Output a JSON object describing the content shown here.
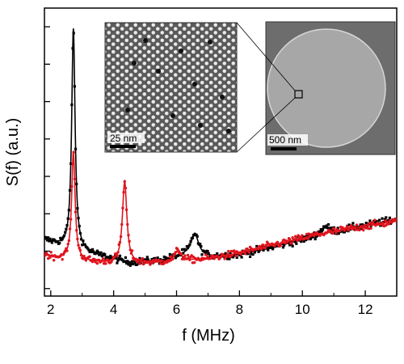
{
  "chart_data": {
    "type": "line",
    "xlabel": "f (MHz)",
    "ylabel": "S(f) (a.u.)",
    "xlim": [
      1.8,
      13.0
    ],
    "ylim": [
      -1.2,
      6.5
    ],
    "x_tick_labels": [
      "2",
      "4",
      "6",
      "8",
      "10",
      "12"
    ],
    "x_ticks": [
      2,
      4,
      6,
      8,
      10,
      12
    ],
    "y_ticks": [
      -1,
      0,
      1,
      2,
      3,
      4,
      5,
      6
    ],
    "y_tick_labels_shown": false,
    "grid": false,
    "legend": "none",
    "series": [
      {
        "color": "#000000",
        "marker": "square",
        "baseline": [
          [
            1.8,
            0.3
          ],
          [
            2.3,
            0.15
          ],
          [
            3.4,
            -0.1
          ],
          [
            4.5,
            -0.3
          ],
          [
            5.5,
            -0.25
          ],
          [
            6.3,
            -0.1
          ],
          [
            7.0,
            -0.15
          ],
          [
            8.0,
            -0.1
          ],
          [
            9.5,
            0.2
          ],
          [
            10.5,
            0.4
          ],
          [
            11.5,
            0.6
          ],
          [
            13.0,
            0.85
          ]
        ],
        "peaks": [
          {
            "f": 2.72,
            "height": 5.9,
            "width": 0.065
          },
          {
            "f": 6.58,
            "height": 0.6,
            "width": 0.14
          },
          {
            "f": 10.72,
            "height": 0.22,
            "width": 0.16
          }
        ]
      },
      {
        "color": "#e0141e",
        "marker": "circle",
        "baseline": [
          [
            1.8,
            -0.1
          ],
          [
            2.3,
            -0.2
          ],
          [
            3.4,
            -0.3
          ],
          [
            4.5,
            -0.35
          ],
          [
            5.5,
            -0.3
          ],
          [
            6.3,
            -0.25
          ],
          [
            7.0,
            -0.2
          ],
          [
            8.0,
            -0.05
          ],
          [
            9.5,
            0.25
          ],
          [
            10.5,
            0.45
          ],
          [
            11.5,
            0.6
          ],
          [
            13.0,
            0.8
          ]
        ],
        "peaks": [
          {
            "f": 2.72,
            "height": 2.9,
            "width": 0.065
          },
          {
            "f": 4.35,
            "height": 2.2,
            "width": 0.085
          },
          {
            "f": 6.05,
            "height": 0.3,
            "width": 0.11
          }
        ]
      }
    ],
    "insets": [
      {
        "kind": "micrograph-nanoparticle-lattice",
        "scale_bar": "25 nm"
      },
      {
        "kind": "micrograph-disk",
        "scale_bar": "500 nm"
      }
    ]
  }
}
